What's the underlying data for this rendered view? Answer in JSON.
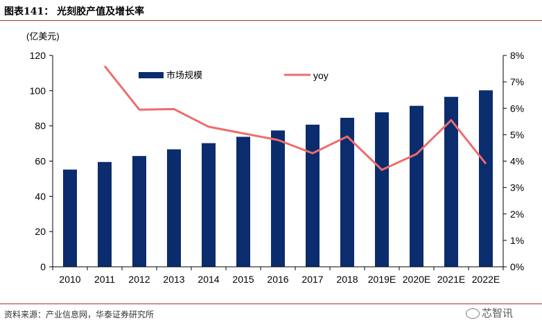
{
  "header": {
    "title": "图表141：  光刻胶产值及增长率"
  },
  "footer": {
    "source": "资料来源：产业信息网，华泰证券研究所",
    "watermark": "芯智讯"
  },
  "chart_data": {
    "type": "bar",
    "unit_label": "(亿美元)",
    "categories": [
      "2010",
      "2011",
      "2012",
      "2013",
      "2014",
      "2015",
      "2016",
      "2017",
      "2018",
      "2019E",
      "2020E",
      "2021E",
      "2022E"
    ],
    "series": [
      {
        "name": "市场规模",
        "type": "bar",
        "axis": "left",
        "color": "#0b2d6e",
        "values": [
          55.2,
          59.5,
          62.9,
          66.7,
          70.2,
          73.8,
          77.4,
          80.7,
          84.6,
          87.7,
          91.4,
          96.5,
          100.2
        ]
      },
      {
        "name": "yoy",
        "type": "line",
        "axis": "right",
        "color": "#f06b6b",
        "values": [
          null,
          7.6,
          5.95,
          5.97,
          5.3,
          5.05,
          4.8,
          4.3,
          4.93,
          3.67,
          4.27,
          5.55,
          3.9
        ]
      }
    ],
    "left_axis": {
      "min": 0,
      "max": 120,
      "ticks": [
        "0",
        "20",
        "40",
        "60",
        "80",
        "100",
        "120"
      ]
    },
    "right_axis": {
      "min": 0,
      "max": 8,
      "ticks": [
        "0%",
        "1%",
        "2%",
        "3%",
        "4%",
        "5%",
        "6%",
        "7%",
        "8%"
      ]
    },
    "grid": false,
    "legend_placement": "top"
  }
}
